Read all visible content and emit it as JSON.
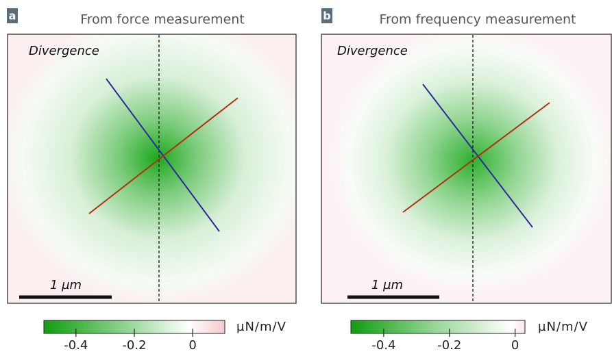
{
  "panels": [
    {
      "label": "a",
      "title": "From force measurement",
      "annotation": "Divergence",
      "scale_bar": "1 µm",
      "colorbar": {
        "unit": "µN/m/V",
        "clim": [
          -0.51,
          0.11
        ],
        "ticks": [
          {
            "value": -0.4,
            "label": "-0.4"
          },
          {
            "value": -0.2,
            "label": "-0.2"
          },
          {
            "value": 0,
            "label": "0"
          }
        ]
      }
    },
    {
      "label": "b",
      "title": "From frequency measurement",
      "annotation": "Divergence",
      "scale_bar": "1 µm",
      "colorbar": {
        "unit": "µN/m/V",
        "clim": [
          -0.5,
          0.03
        ],
        "ticks": [
          {
            "value": -0.4,
            "label": "-0.4"
          },
          {
            "value": -0.2,
            "label": "-0.2"
          },
          {
            "value": 0,
            "label": "0"
          }
        ]
      }
    }
  ]
}
